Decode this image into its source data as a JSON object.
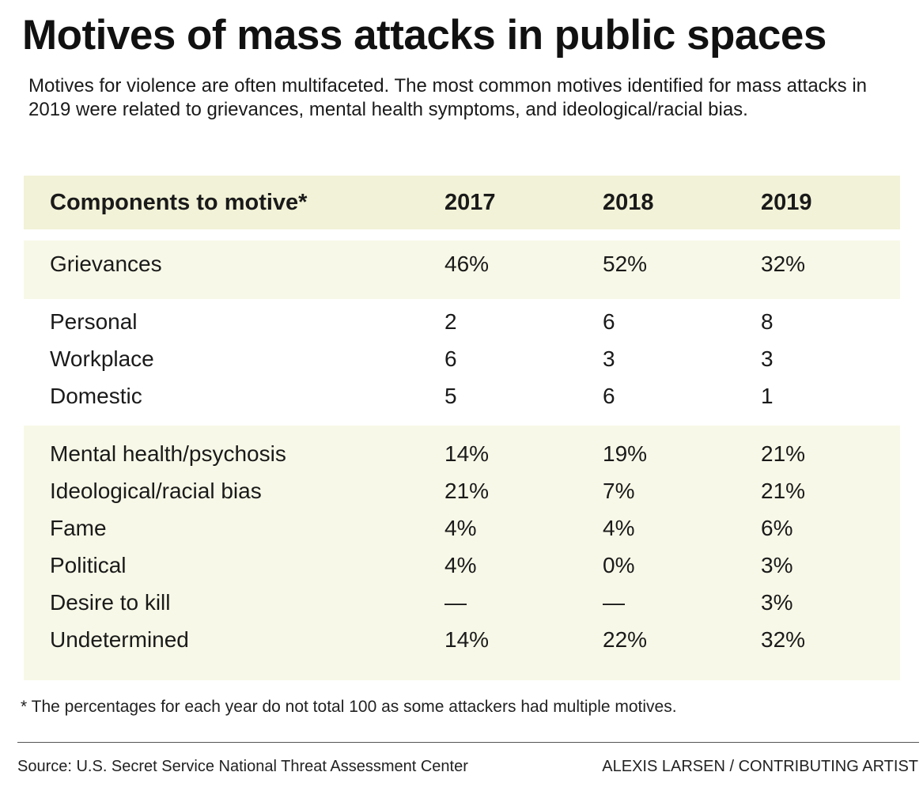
{
  "title": "Motives of mass attacks in public spaces",
  "subtitle": "Motives for violence are often multifaceted. The most common motives identified for mass attacks in 2019 were related to grievances, mental health symptoms, and ideological/racial bias.",
  "chart_data": {
    "type": "table",
    "columns": [
      "Components to motive*",
      "2017",
      "2018",
      "2019"
    ],
    "rows": [
      [
        "Grievances",
        "46%",
        "52%",
        "32%"
      ],
      [
        "Personal",
        "2",
        "6",
        "8"
      ],
      [
        "Workplace",
        "6",
        "3",
        "3"
      ],
      [
        "Domestic",
        "5",
        "6",
        "1"
      ],
      [
        "Mental health/psychosis",
        "14%",
        "19%",
        "21%"
      ],
      [
        "Ideological/racial bias",
        "21%",
        "7%",
        "21%"
      ],
      [
        "Fame",
        "4%",
        "4%",
        "6%"
      ],
      [
        "Political",
        "4%",
        "0%",
        "3%"
      ],
      [
        "Desire to kill",
        "—",
        "—",
        "3%"
      ],
      [
        "Undetermined",
        "14%",
        "22%",
        "32%"
      ]
    ]
  },
  "footnote": "* The percentages for each year do not total 100 as some attackers had multiple motives.",
  "source": "Source: U.S. Secret Service National Threat Assessment Center",
  "credit": "ALEXIS LARSEN / CONTRIBUTING ARTIST",
  "colors": {
    "header_band": "#f2f2d8",
    "row_band": "#f8f8e8",
    "text": "#1a1a1a"
  }
}
